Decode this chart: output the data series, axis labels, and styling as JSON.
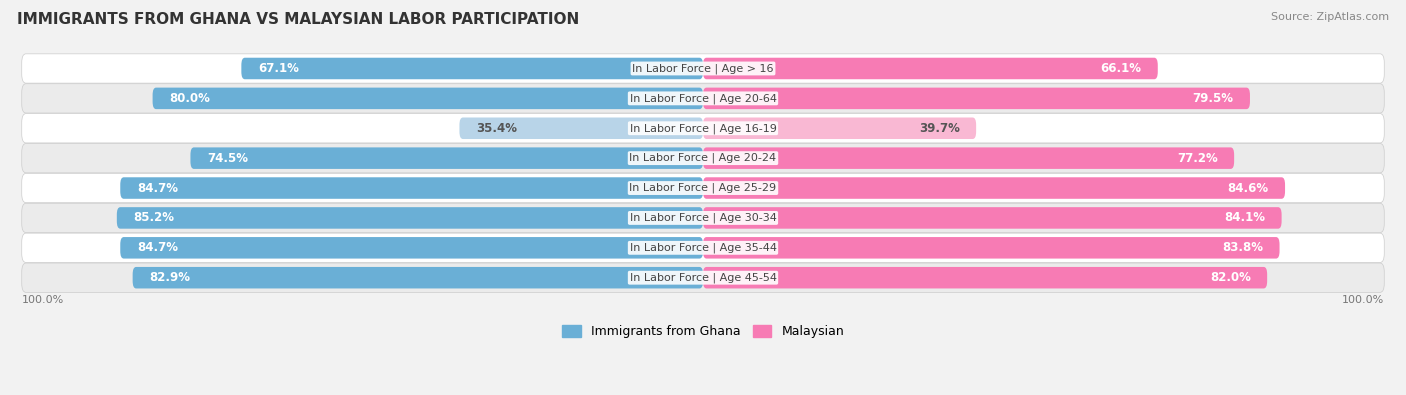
{
  "title": "IMMIGRANTS FROM GHANA VS MALAYSIAN LABOR PARTICIPATION",
  "source": "Source: ZipAtlas.com",
  "categories": [
    "In Labor Force | Age > 16",
    "In Labor Force | Age 20-64",
    "In Labor Force | Age 16-19",
    "In Labor Force | Age 20-24",
    "In Labor Force | Age 25-29",
    "In Labor Force | Age 30-34",
    "In Labor Force | Age 35-44",
    "In Labor Force | Age 45-54"
  ],
  "ghana_values": [
    67.1,
    80.0,
    35.4,
    74.5,
    84.7,
    85.2,
    84.7,
    82.9
  ],
  "malaysian_values": [
    66.1,
    79.5,
    39.7,
    77.2,
    84.6,
    84.1,
    83.8,
    82.0
  ],
  "ghana_color_full": "#6aafd6",
  "ghana_color_light": "#b8d4e8",
  "malaysian_color_full": "#f77bb4",
  "malaysian_color_light": "#f9b8d3",
  "background_color": "#f2f2f2",
  "row_bg_even": "#ffffff",
  "row_bg_odd": "#ebebeb",
  "label_fontsize": 8.5,
  "cat_fontsize": 8.0,
  "title_fontsize": 11,
  "source_fontsize": 8,
  "legend_fontsize": 9
}
